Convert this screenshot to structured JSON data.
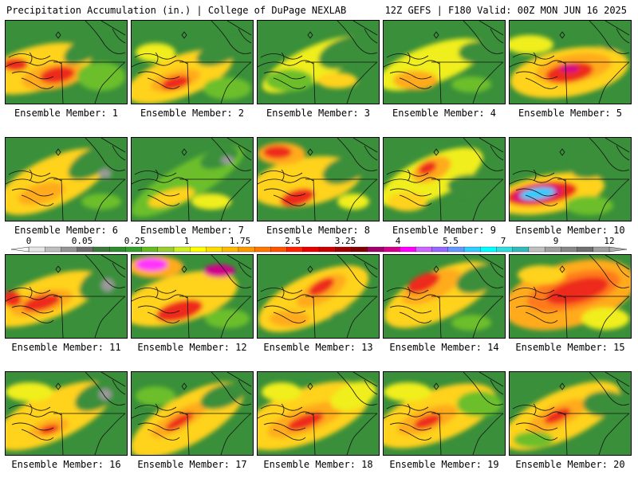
{
  "header": {
    "title_left": "Precipitation Accumulation (in.) | College of DuPage NEXLAB",
    "title_right": "12Z GEFS | F180 Valid: 00Z MON JUN 16 2025"
  },
  "legend": {
    "tick_labels": [
      "0",
      "0.05",
      "0.25",
      "1",
      "1.75",
      "2.5",
      "3.25",
      "4",
      "5.5",
      "7",
      "9",
      "12"
    ],
    "colors": [
      "#e6e6e6",
      "#bebebe",
      "#969696",
      "#6e6e6e",
      "#3c7a3c",
      "#2e8b2e",
      "#33a02c",
      "#66bb22",
      "#9acd32",
      "#ccee22",
      "#ffff00",
      "#ffdd00",
      "#ffbb00",
      "#ff9900",
      "#ff7700",
      "#ff5500",
      "#ff2200",
      "#e60000",
      "#c80000",
      "#a00000",
      "#800000",
      "#a0006e",
      "#d2008c",
      "#ff00ff",
      "#cc66ff",
      "#9966ff",
      "#6699ff",
      "#33ccff",
      "#00ffff",
      "#33dddd",
      "#33bbbb",
      "#c0c0c0",
      "#a0a0a0",
      "#888888",
      "#707070",
      "#a0a0a0"
    ]
  },
  "members": [
    {
      "label": "Ensemble Member: 1"
    },
    {
      "label": "Ensemble Member: 2"
    },
    {
      "label": "Ensemble Member: 3"
    },
    {
      "label": "Ensemble Member: 4"
    },
    {
      "label": "Ensemble Member: 5"
    },
    {
      "label": "Ensemble Member: 6"
    },
    {
      "label": "Ensemble Member: 7"
    },
    {
      "label": "Ensemble Member: 8"
    },
    {
      "label": "Ensemble Member: 9"
    },
    {
      "label": "Ensemble Member: 10"
    },
    {
      "label": "Ensemble Member: 11"
    },
    {
      "label": "Ensemble Member: 12"
    },
    {
      "label": "Ensemble Member: 13"
    },
    {
      "label": "Ensemble Member: 14"
    },
    {
      "label": "Ensemble Member: 15"
    },
    {
      "label": "Ensemble Member: 16"
    },
    {
      "label": "Ensemble Member: 17"
    },
    {
      "label": "Ensemble Member: 18"
    },
    {
      "label": "Ensemble Member: 19"
    },
    {
      "label": "Ensemble Member: 20"
    }
  ]
}
